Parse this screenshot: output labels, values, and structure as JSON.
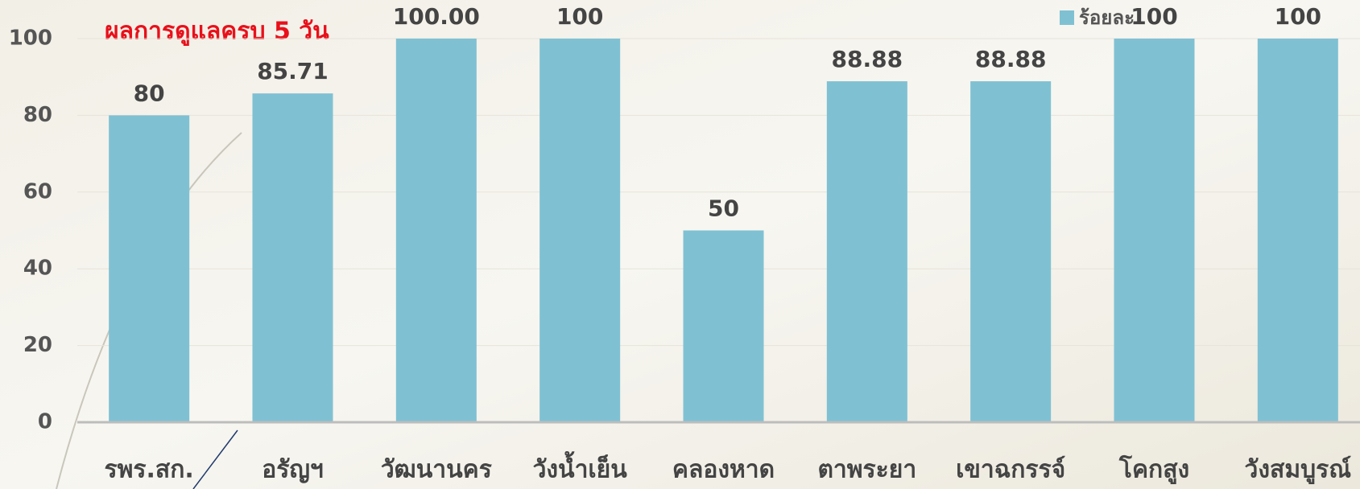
{
  "chart_data": {
    "type": "bar",
    "title": "ผลการดูแลครบ 5 วัน",
    "categories": [
      "รพร.สก.",
      "อรัญฯ",
      "วัฒนานคร",
      "วังน้ำเย็น",
      "คลองหาด",
      "ตาพระยา",
      "เขาฉกรรจ์",
      "โคกสูง",
      "วังสมบูรณ์"
    ],
    "series": [
      {
        "name": "ร้อยละ",
        "color": "#7fc1d3",
        "values": [
          80,
          85.71,
          100,
          100,
          50,
          88.88,
          88.88,
          100,
          100
        ],
        "value_labels": [
          "80",
          "85.71",
          "100.00",
          "100",
          "50",
          "88.88",
          "88.88",
          "100",
          "100"
        ]
      }
    ],
    "ylim": [
      0,
      100
    ],
    "yticks": [
      0,
      20,
      40,
      60,
      80,
      100
    ],
    "grid": true,
    "legend": "top-right"
  }
}
